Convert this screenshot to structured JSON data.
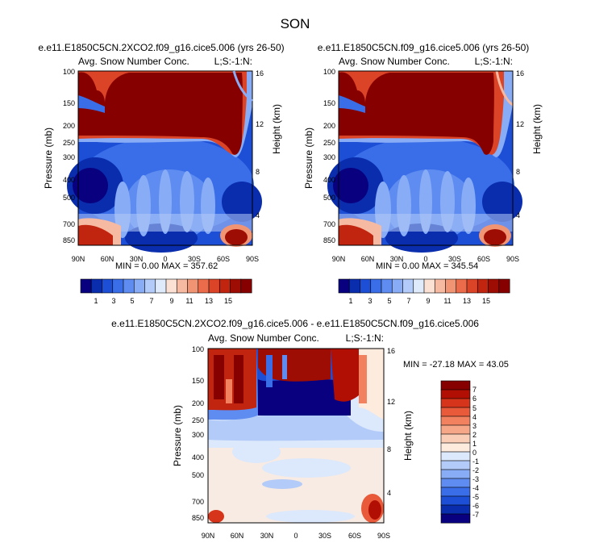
{
  "page_title": "SON",
  "chart_data": [
    {
      "type": "heatmap",
      "title": "e.e11.E1850C5CN.2XCO2.f09_g16.cice5.006 (yrs 26-50)",
      "left_label": "Avg. Snow Number Conc.",
      "right_label": "L;S:-1:N:",
      "ylabel": "Pressure (mb)",
      "y2label": "Height (km)",
      "xticks": [
        "90N",
        "60N",
        "30N",
        "0",
        "30S",
        "60S",
        "90S"
      ],
      "yticks": [
        "100",
        "150",
        "200",
        "250",
        "300",
        "400",
        "500",
        "700",
        "850"
      ],
      "y2ticks": [
        "16",
        "12",
        "8",
        "4"
      ],
      "xlim": [
        90,
        -90
      ],
      "ylim_mb": [
        1000,
        100
      ],
      "stats": "MIN =   0.00  MAX = 357.62",
      "colorbar_ticks": [
        "1",
        "3",
        "5",
        "7",
        "9",
        "11",
        "13",
        "15"
      ]
    },
    {
      "type": "heatmap",
      "title": "e.e11.E1850C5CN.f09_g16.cice5.006 (yrs 26-50)",
      "left_label": "Avg. Snow Number Conc.",
      "right_label": "L;S:-1:N:",
      "ylabel": "Pressure (mb)",
      "y2label": "Height (km)",
      "xticks": [
        "90N",
        "60N",
        "30N",
        "0",
        "30S",
        "60S",
        "90S"
      ],
      "yticks": [
        "100",
        "150",
        "200",
        "250",
        "300",
        "400",
        "500",
        "700",
        "850"
      ],
      "y2ticks": [
        "16",
        "12",
        "8",
        "4"
      ],
      "xlim": [
        90,
        -90
      ],
      "ylim_mb": [
        1000,
        100
      ],
      "stats": "MIN =   0.00  MAX = 345.54",
      "colorbar_ticks": [
        "1",
        "3",
        "5",
        "7",
        "9",
        "11",
        "13",
        "15"
      ]
    },
    {
      "type": "heatmap",
      "title": "e.e11.E1850C5CN.2XCO2.f09_g16.cice5.006 - e.e11.E1850C5CN.f09_g16.cice5.006",
      "left_label": "Avg. Snow Number Conc.",
      "right_label": "L;S:-1:N:",
      "ylabel": "Pressure (mb)",
      "y2label": "Height (km)",
      "xticks": [
        "90N",
        "60N",
        "30N",
        "0",
        "30S",
        "60S",
        "90S"
      ],
      "yticks": [
        "100",
        "150",
        "200",
        "250",
        "300",
        "400",
        "500",
        "700",
        "850"
      ],
      "y2ticks": [
        "16",
        "12",
        "8",
        "4"
      ],
      "xlim": [
        90,
        -90
      ],
      "ylim_mb": [
        1000,
        100
      ],
      "stats": "MIN = -27.18  MAX =  43.05",
      "colorbar_ticks": [
        "7",
        "6",
        "5",
        "4",
        "3",
        "2",
        "1",
        "0",
        "-1",
        "-2",
        "-3",
        "-4",
        "-5",
        "-6",
        "-7"
      ]
    }
  ],
  "colors": {
    "abs_levels": [
      "#08007f",
      "#0a2dad",
      "#1d4fd6",
      "#3a6ee8",
      "#5e8cf0",
      "#88acf5",
      "#b3cbf8",
      "#dfeafb",
      "#fbe0d4",
      "#f6baa2",
      "#f19474",
      "#ea6c4b",
      "#dc4428",
      "#c2250f",
      "#9e0d03",
      "#870000"
    ],
    "diff_levels": [
      "#870000",
      "#b10f04",
      "#d6351b",
      "#e85a3a",
      "#f2825f",
      "#f6a788",
      "#f9cdb6",
      "#fdebde",
      "#dce8fb",
      "#b3cbf8",
      "#88acf5",
      "#5e8cf0",
      "#3a6ee8",
      "#1d4fd6",
      "#0a2dad",
      "#08007f"
    ]
  }
}
